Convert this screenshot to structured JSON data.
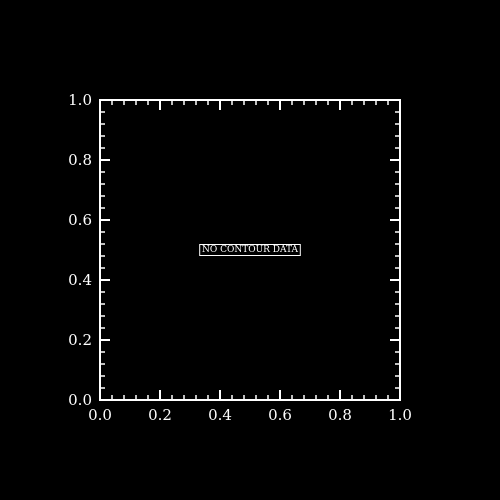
{
  "colors": {
    "background": "#000000",
    "foreground": "#ffffff"
  },
  "chart_data": {
    "type": "scatter",
    "title": "",
    "xlabel": "",
    "ylabel": "",
    "xlim": [
      0.0,
      1.0
    ],
    "ylim": [
      0.0,
      1.0
    ],
    "grid": false,
    "x_major_ticks": [
      0.0,
      0.2,
      0.4,
      0.6,
      0.8,
      1.0
    ],
    "x_tick_labels": [
      "0.0",
      "0.2",
      "0.4",
      "0.6",
      "0.8",
      "1.0"
    ],
    "y_major_ticks": [
      0.0,
      0.2,
      0.4,
      0.6,
      0.8,
      1.0
    ],
    "y_tick_labels": [
      "0.0",
      "0.2",
      "0.4",
      "0.6",
      "0.8",
      "1.0"
    ],
    "minor_ticks_per_major": 4,
    "series": [],
    "annotation": {
      "text": "NO CONTOUR DATA",
      "x": 0.5,
      "y": 0.5
    }
  }
}
